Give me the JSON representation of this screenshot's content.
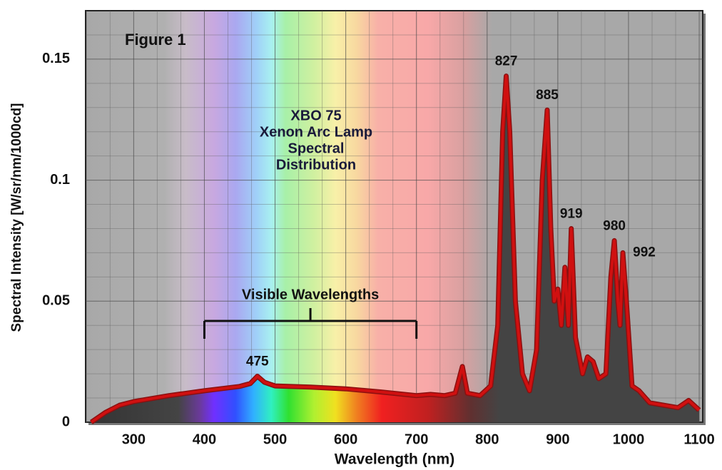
{
  "chart_data": {
    "type": "area",
    "figure_label": "Figure 1",
    "title_lines": [
      "XBO 75",
      "Xenon Arc Lamp",
      "Spectral",
      "Distribution"
    ],
    "x_label": "Wavelength (nm)",
    "y_label": "Spectral Intensity [W/sr/nm/1000cd]",
    "x": [
      240,
      260,
      280,
      300,
      350,
      400,
      450,
      465,
      475,
      485,
      500,
      550,
      600,
      650,
      700,
      720,
      740,
      755,
      765,
      772,
      790,
      805,
      815,
      822,
      827,
      832,
      840,
      850,
      860,
      870,
      878,
      885,
      890,
      895,
      900,
      905,
      910,
      915,
      919,
      925,
      935,
      942,
      950,
      958,
      968,
      975,
      980,
      985,
      988,
      992,
      997,
      1005,
      1015,
      1030,
      1050,
      1070,
      1085,
      1100
    ],
    "values": [
      0,
      0.004,
      0.007,
      0.0085,
      0.011,
      0.013,
      0.0148,
      0.016,
      0.019,
      0.0165,
      0.015,
      0.0145,
      0.0138,
      0.0125,
      0.011,
      0.0115,
      0.011,
      0.012,
      0.023,
      0.012,
      0.011,
      0.015,
      0.04,
      0.12,
      0.143,
      0.12,
      0.05,
      0.02,
      0.013,
      0.03,
      0.1,
      0.129,
      0.08,
      0.05,
      0.055,
      0.04,
      0.064,
      0.04,
      0.08,
      0.035,
      0.02,
      0.027,
      0.025,
      0.018,
      0.02,
      0.06,
      0.075,
      0.05,
      0.04,
      0.07,
      0.05,
      0.015,
      0.013,
      0.008,
      0.007,
      0.006,
      0.009,
      0.005
    ],
    "color": "#d01010",
    "peaks": [
      475,
      827,
      885,
      919,
      980,
      992
    ],
    "visible_label": "Visible Wavelengths",
    "visible_range": [
      400,
      700
    ],
    "xlim": [
      232,
      1105
    ],
    "ylim": [
      0,
      0.17
    ],
    "xticks": [
      300,
      400,
      500,
      600,
      700,
      800,
      900,
      1000,
      1100
    ],
    "yticks": [
      0,
      0.05,
      0.1,
      0.15
    ],
    "grid": true
  }
}
